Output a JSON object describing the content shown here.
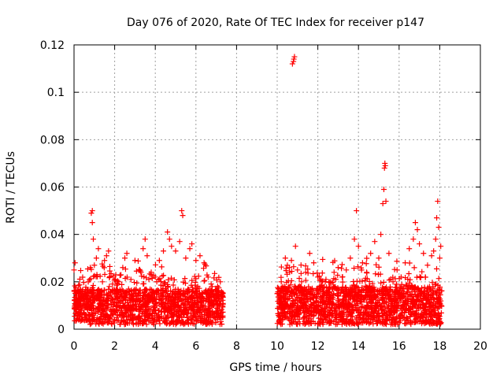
{
  "chart_data": {
    "type": "scatter",
    "title": "Day 076 of 2020, Rate Of TEC Index for receiver p147",
    "xlabel": "GPS time / hours",
    "ylabel": "ROTI / TECUs",
    "xlim": [
      0,
      20
    ],
    "ylim": [
      0,
      0.12
    ],
    "x_ticks": [
      0,
      2,
      4,
      6,
      8,
      10,
      12,
      14,
      16,
      18,
      20
    ],
    "x_tick_labels": [
      "0",
      "2",
      "4",
      "6",
      "8",
      "10",
      "12",
      "14",
      "16",
      "18",
      "20"
    ],
    "y_ticks": [
      0,
      0.02,
      0.04,
      0.06,
      0.08,
      0.1,
      0.12
    ],
    "y_tick_labels": [
      "0",
      "0.02",
      "0.04",
      "0.06",
      "0.08",
      "0.1",
      "0.12"
    ],
    "grid": true,
    "marker": "+",
    "series": [
      {
        "name": "ROTI",
        "color": "#ff0000",
        "points": [
          [
            0.0,
            0.025
          ],
          [
            0.05,
            0.028
          ],
          [
            0.1,
            0.015
          ],
          [
            0.2,
            0.009
          ],
          [
            0.3,
            0.012
          ],
          [
            0.4,
            0.005
          ],
          [
            0.5,
            0.01
          ],
          [
            0.7,
            0.02
          ],
          [
            0.8,
            0.026
          ],
          [
            0.85,
            0.049
          ],
          [
            0.9,
            0.05
          ],
          [
            0.9,
            0.045
          ],
          [
            0.95,
            0.038
          ],
          [
            1.0,
            0.027
          ],
          [
            1.1,
            0.03
          ],
          [
            1.2,
            0.034
          ],
          [
            1.4,
            0.02
          ],
          [
            1.5,
            0.029
          ],
          [
            1.6,
            0.031
          ],
          [
            1.7,
            0.033
          ],
          [
            1.8,
            0.012
          ],
          [
            2.0,
            0.015
          ],
          [
            2.2,
            0.02
          ],
          [
            2.4,
            0.026
          ],
          [
            2.5,
            0.03
          ],
          [
            2.6,
            0.032
          ],
          [
            2.8,
            0.021
          ],
          [
            3.0,
            0.029
          ],
          [
            3.2,
            0.025
          ],
          [
            3.4,
            0.034
          ],
          [
            3.5,
            0.038
          ],
          [
            3.6,
            0.031
          ],
          [
            3.8,
            0.024
          ],
          [
            4.0,
            0.022
          ],
          [
            4.2,
            0.029
          ],
          [
            4.4,
            0.033
          ],
          [
            4.6,
            0.041
          ],
          [
            4.7,
            0.038
          ],
          [
            4.8,
            0.035
          ],
          [
            5.0,
            0.033
          ],
          [
            5.2,
            0.037
          ],
          [
            5.3,
            0.05
          ],
          [
            5.35,
            0.048
          ],
          [
            5.5,
            0.03
          ],
          [
            5.7,
            0.034
          ],
          [
            5.8,
            0.036
          ],
          [
            6.0,
            0.029
          ],
          [
            6.2,
            0.031
          ],
          [
            6.4,
            0.028
          ],
          [
            6.6,
            0.022
          ],
          [
            6.8,
            0.018
          ],
          [
            7.0,
            0.015
          ],
          [
            7.2,
            0.02
          ],
          [
            7.3,
            0.014
          ],
          [
            10.0,
            0.015
          ],
          [
            10.2,
            0.02
          ],
          [
            10.4,
            0.03
          ],
          [
            10.5,
            0.027
          ],
          [
            10.6,
            0.026
          ],
          [
            10.7,
            0.029
          ],
          [
            10.75,
            0.112
          ],
          [
            10.8,
            0.113
          ],
          [
            10.82,
            0.114
          ],
          [
            10.85,
            0.115
          ],
          [
            10.9,
            0.035
          ],
          [
            11.0,
            0.025
          ],
          [
            11.2,
            0.02
          ],
          [
            11.4,
            0.024
          ],
          [
            11.6,
            0.032
          ],
          [
            11.8,
            0.028
          ],
          [
            12.0,
            0.022
          ],
          [
            12.2,
            0.02
          ],
          [
            12.4,
            0.021
          ],
          [
            12.6,
            0.02
          ],
          [
            12.8,
            0.024
          ],
          [
            13.0,
            0.026
          ],
          [
            13.2,
            0.022
          ],
          [
            13.4,
            0.025
          ],
          [
            13.6,
            0.03
          ],
          [
            13.8,
            0.038
          ],
          [
            13.9,
            0.05
          ],
          [
            14.0,
            0.035
          ],
          [
            14.2,
            0.028
          ],
          [
            14.4,
            0.024
          ],
          [
            14.6,
            0.032
          ],
          [
            14.8,
            0.037
          ],
          [
            15.0,
            0.03
          ],
          [
            15.1,
            0.04
          ],
          [
            15.2,
            0.053
          ],
          [
            15.25,
            0.059
          ],
          [
            15.28,
            0.068
          ],
          [
            15.3,
            0.07
          ],
          [
            15.32,
            0.069
          ],
          [
            15.35,
            0.054
          ],
          [
            15.5,
            0.032
          ],
          [
            15.7,
            0.02
          ],
          [
            15.9,
            0.025
          ],
          [
            16.1,
            0.022
          ],
          [
            16.3,
            0.028
          ],
          [
            16.5,
            0.034
          ],
          [
            16.7,
            0.038
          ],
          [
            16.8,
            0.045
          ],
          [
            16.9,
            0.042
          ],
          [
            17.0,
            0.036
          ],
          [
            17.2,
            0.032
          ],
          [
            17.4,
            0.027
          ],
          [
            17.6,
            0.031
          ],
          [
            17.7,
            0.033
          ],
          [
            17.8,
            0.038
          ],
          [
            17.85,
            0.047
          ],
          [
            17.9,
            0.054
          ],
          [
            17.95,
            0.043
          ],
          [
            18.0,
            0.03
          ],
          [
            18.05,
            0.035
          ]
        ]
      }
    ],
    "dense_segments": [
      {
        "start": 0.0,
        "end": 7.35,
        "base_min": 0.002,
        "base_max": 0.017,
        "density": 1400
      },
      {
        "start": 10.0,
        "end": 18.1,
        "base_min": 0.002,
        "base_max": 0.018,
        "density": 1600
      }
    ]
  }
}
